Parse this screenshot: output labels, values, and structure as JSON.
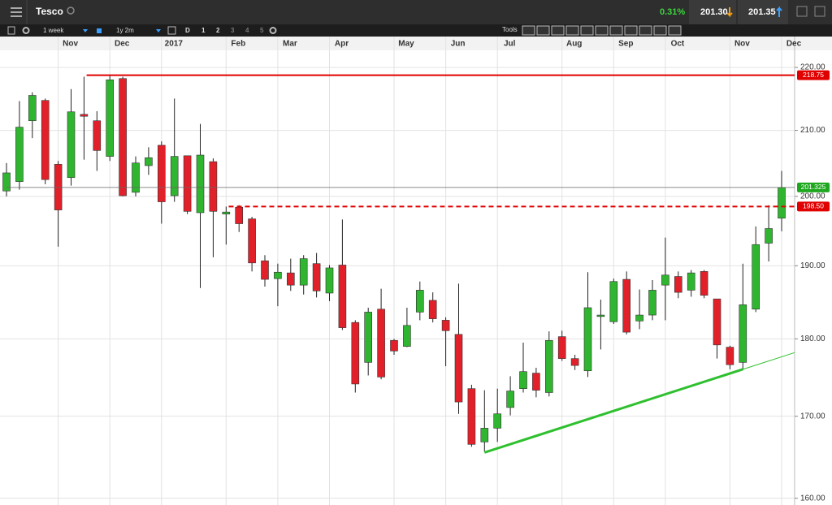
{
  "header": {
    "title": "Tesco",
    "change": "0.31%",
    "sell": "201.30",
    "buy": "201.35"
  },
  "toolbar": {
    "interval": "1 week",
    "range": "1y 2m",
    "mode": "D",
    "layouts": [
      "1",
      "2",
      "3",
      "4",
      "5"
    ],
    "tools": "Tools"
  },
  "chart_data": {
    "type": "candlestick",
    "open": [
      200.8,
      202.2,
      211.5,
      214.7,
      204.8,
      202.8,
      212.5,
      211.5,
      206,
      218.2,
      200.6,
      204.6,
      207.7,
      200.1,
      206.1,
      197.6,
      205.2,
      197.4,
      198.4,
      196.7,
      190.7,
      188.2,
      189,
      187.3,
      190.3,
      186.2,
      190.1,
      182.2,
      176.9,
      184,
      179.8,
      179,
      183.6,
      185.2,
      182.5,
      180.6,
      173.5,
      166.8,
      168.5,
      171.1,
      173.5,
      175.5,
      173,
      180.3,
      177.4,
      175.8,
      183,
      182.3,
      188.1,
      182.4,
      183.2,
      187.3,
      188.5,
      186.6,
      189.2,
      185.4,
      178.9,
      176.9,
      184,
      193.2,
      196.8
    ],
    "high": [
      205,
      214.6,
      216,
      215,
      205.3,
      216.5,
      218.5,
      213,
      218.8,
      218.5,
      206,
      207.4,
      208.3,
      215,
      206.1,
      211,
      205.7,
      198.5,
      198.7,
      197,
      191.5,
      190.3,
      191,
      191.5,
      191.8,
      190.1,
      196.6,
      182.5,
      184.2,
      186.8,
      180,
      184.2,
      187.8,
      186.3,
      182.9,
      187.5,
      174,
      173.3,
      173.5,
      175.1,
      179.5,
      176.2,
      181,
      181.1,
      177.9,
      189.1,
      185.3,
      188.2,
      189.2,
      186.7,
      188,
      194,
      189.2,
      189.4,
      189.4,
      185.4,
      179.1,
      190.3,
      195.6,
      198.7,
      203.8
    ],
    "low": [
      200,
      201,
      208.8,
      201.8,
      192.7,
      201.6,
      205.5,
      203.8,
      205.3,
      200,
      200,
      203.2,
      196,
      199.2,
      197.4,
      186.9,
      191.2,
      193,
      194.8,
      189.2,
      187.1,
      184.4,
      186.5,
      186,
      185.6,
      185.1,
      181.2,
      173,
      175.2,
      174.7,
      177.9,
      178.9,
      182.5,
      182.2,
      176.4,
      170.3,
      166.2,
      165.6,
      166.8,
      170.1,
      173,
      172.4,
      172.5,
      177.1,
      175.9,
      175,
      178.6,
      182,
      180.6,
      181.3,
      182.5,
      182.5,
      185.5,
      185.7,
      185.5,
      177.4,
      176,
      176,
      183.6,
      190.6,
      194.9
    ],
    "close": [
      203.5,
      210.5,
      215.5,
      202.5,
      198,
      212.9,
      212.2,
      206.9,
      218,
      200.1,
      205,
      205.8,
      199.2,
      206,
      197.8,
      206.2,
      197.8,
      197.7,
      196,
      190.4,
      188.1,
      189.1,
      187.3,
      191,
      186.5,
      189.7,
      181.5,
      174.1,
      183.6,
      175,
      178.4,
      181.8,
      186.6,
      182.7,
      181.1,
      171.8,
      166.5,
      168.5,
      170.3,
      173.2,
      175.7,
      173.3,
      179.8,
      177.4,
      176.5,
      184.2,
      183.2,
      187.8,
      180.9,
      183.2,
      186.6,
      188.7,
      186.3,
      189,
      185.9,
      179.2,
      176.6,
      184.6,
      193,
      195.3,
      201.3
    ],
    "up_color": "#2fb52f",
    "down_color": "#e2202a",
    "x_labels": [
      {
        "index": 4,
        "label": "Nov"
      },
      {
        "index": 8,
        "label": "Dec"
      },
      {
        "index": 12,
        "label": "2017"
      },
      {
        "index": 17,
        "label": "Feb"
      },
      {
        "index": 21,
        "label": "Mar"
      },
      {
        "index": 25,
        "label": "Apr"
      },
      {
        "index": 30,
        "label": "May"
      },
      {
        "index": 34,
        "label": "Jun"
      },
      {
        "index": 38,
        "label": "Jul"
      },
      {
        "index": 43,
        "label": "Aug"
      },
      {
        "index": 47,
        "label": "Sep"
      },
      {
        "index": 51,
        "label": "Oct"
      },
      {
        "index": 56,
        "label": "Nov"
      },
      {
        "index": 60,
        "label": "Dec"
      }
    ],
    "ylim": [
      159.2,
      222.8
    ],
    "log_scale": true,
    "grid": true,
    "yticks": [
      {
        "value": 160,
        "label": "160.00"
      },
      {
        "value": 170,
        "label": "170.00"
      },
      {
        "value": 180,
        "label": "180.00"
      },
      {
        "value": 190,
        "label": "190.00"
      },
      {
        "value": 200,
        "label": "200.00"
      },
      {
        "value": 210,
        "label": "210.00"
      },
      {
        "value": 220,
        "label": "220.00"
      }
    ],
    "levels": [
      {
        "value": 218.75,
        "label": "218.75",
        "color": "#e00000",
        "style": "solid",
        "from_index": 6.2
      },
      {
        "value": 198.5,
        "label": "198.50",
        "color": "#e00000",
        "style": "dashed",
        "from_index": 17.2
      },
      {
        "value": 201.325,
        "label": "201.325",
        "color": "#1fa81f",
        "line_color": "#666666",
        "style": "thin",
        "from_index": 0
      }
    ],
    "trendline": {
      "color": "#2ec02e",
      "from": [
        37,
        165.5
      ],
      "to": [
        57,
        176
      ]
    }
  }
}
